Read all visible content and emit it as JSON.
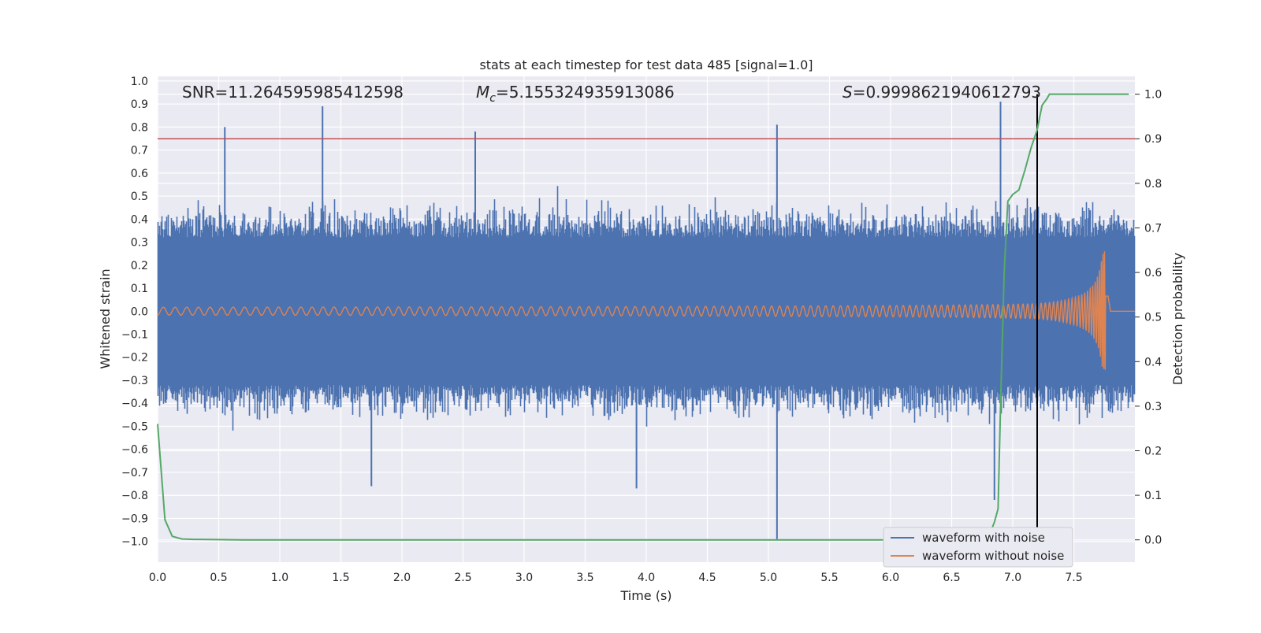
{
  "chart_data": {
    "type": "line",
    "title": "stats at each timestep for test data 485 [signal=1.0]",
    "xlabel": "Time (s)",
    "ylabel": "Whitened strain",
    "y2label": "Detection probability",
    "xlim": [
      0.0,
      8.0
    ],
    "ylim": [
      -1.09,
      1.02
    ],
    "y2lim": [
      -0.05,
      1.04
    ],
    "x_ticks": [
      "0.0",
      "0.5",
      "1.0",
      "1.5",
      "2.0",
      "2.5",
      "3.0",
      "3.5",
      "4.0",
      "4.5",
      "5.0",
      "5.5",
      "6.0",
      "6.5",
      "7.0",
      "7.5"
    ],
    "y_ticks": [
      "1.0",
      "0.9",
      "0.8",
      "0.7",
      "0.6",
      "0.5",
      "0.4",
      "0.3",
      "0.2",
      "0.1",
      "0.0",
      "−0.1",
      "−0.2",
      "−0.3",
      "−0.4",
      "−0.5",
      "−0.6",
      "−0.7",
      "−0.8",
      "−0.9",
      "−1.0"
    ],
    "y2_ticks": [
      "1.0",
      "0.9",
      "0.8",
      "0.7",
      "0.6",
      "0.5",
      "0.4",
      "0.3",
      "0.2",
      "0.1",
      "0.0"
    ],
    "grid": true,
    "legend_position": "lower-right",
    "annotations": {
      "snr": "SNR=11.264595985412598",
      "mc_symbol": "M",
      "mc_subscript": "c",
      "mc_value": "=5.155324935913086",
      "s_symbol": "S",
      "s_value": "=0.9998621940612793"
    },
    "threshold": {
      "y2": 0.9,
      "color": "#c44e52"
    },
    "marker_line": {
      "x": 7.2,
      "color": "#000000"
    },
    "series": [
      {
        "name": "waveform with noise",
        "color": "#4c72b0",
        "axis": "left",
        "envelope_peaks": [
          {
            "x": 0.55,
            "y": 0.8
          },
          {
            "x": 1.35,
            "y": 0.89
          },
          {
            "x": 2.6,
            "y": 0.78
          },
          {
            "x": 5.07,
            "y": 0.81
          },
          {
            "x": 6.9,
            "y": 0.91
          },
          {
            "x": 5.07,
            "y": -0.99
          },
          {
            "x": 6.85,
            "y": -0.82
          },
          {
            "x": 3.92,
            "y": -0.77
          },
          {
            "x": 1.75,
            "y": -0.76
          }
        ]
      },
      {
        "name": "waveform without noise",
        "color": "#dd8452",
        "axis": "left",
        "peak_amplitude": 0.26,
        "merger_time": 7.78
      },
      {
        "name": "",
        "color": "#55a868",
        "axis": "right",
        "x": [
          0.0,
          0.06,
          0.12,
          0.2,
          0.3,
          0.5,
          0.7,
          1.0,
          2.0,
          3.0,
          4.0,
          5.0,
          6.0,
          6.5,
          6.8,
          6.85,
          6.88,
          6.9,
          6.93,
          6.96,
          7.0,
          7.05,
          7.1,
          7.15,
          7.2,
          7.24,
          7.28,
          7.3,
          7.35,
          7.5,
          7.95
        ],
        "y": [
          0.26,
          0.045,
          0.008,
          0.002,
          0.001,
          0.0005,
          0.0,
          0.0,
          0.0,
          0.0,
          0.0,
          0.0,
          0.0,
          0.0,
          0.005,
          0.04,
          0.07,
          0.3,
          0.6,
          0.76,
          0.775,
          0.785,
          0.83,
          0.88,
          0.92,
          0.975,
          0.99,
          1.0,
          1.0,
          1.0,
          1.0
        ]
      }
    ]
  },
  "legend": {
    "items": [
      {
        "label": "waveform with noise",
        "color": "#4c72b0"
      },
      {
        "label": "waveform without noise",
        "color": "#dd8452"
      }
    ]
  }
}
